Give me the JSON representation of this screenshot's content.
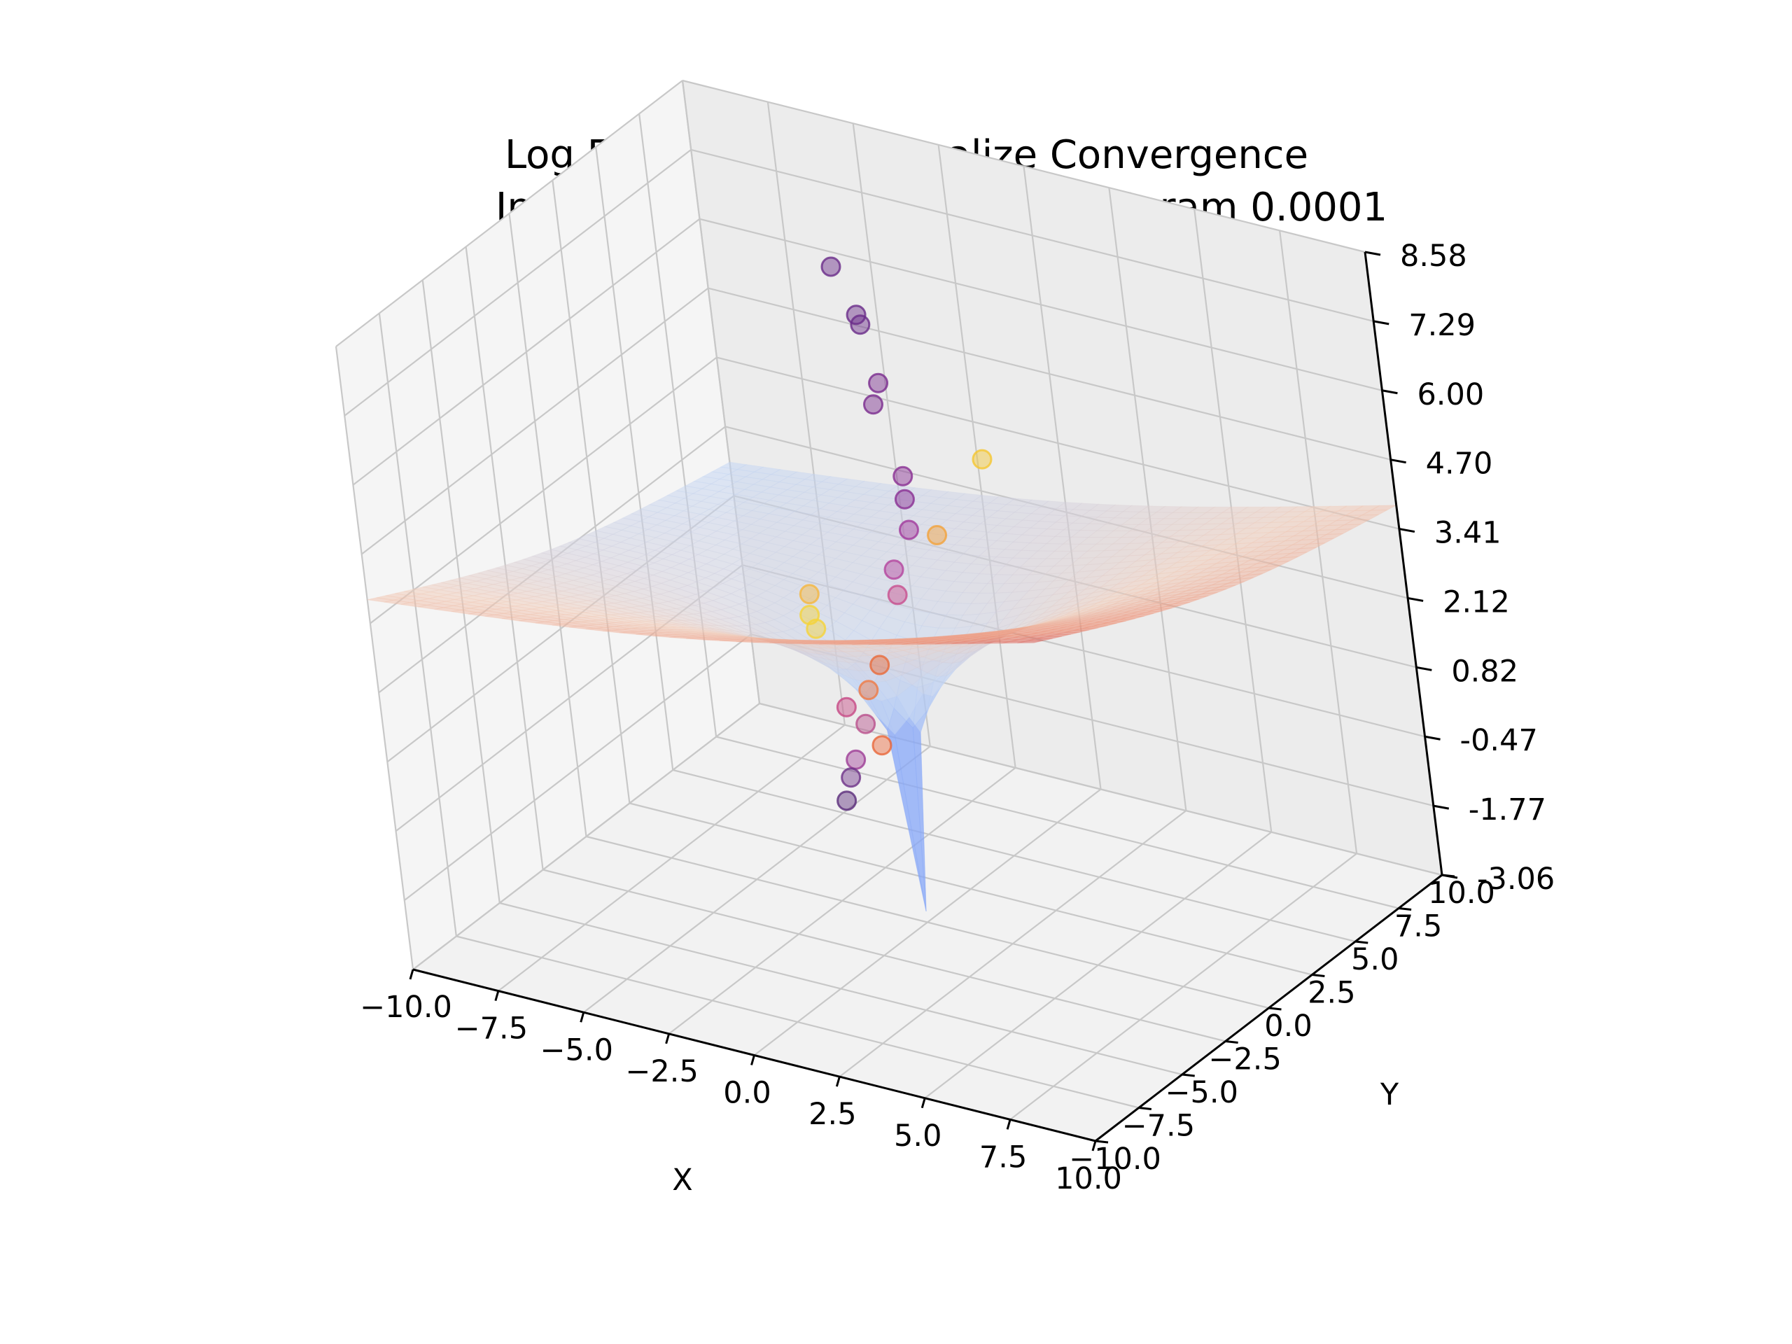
{
  "chart_data": {
    "type": "surface3d",
    "title": "Log Function Nonnormalize Convergence",
    "subtitle": "Inv Sq Root Optimal Step Sizes Param 0.0001",
    "xlabel": "X",
    "ylabel": "Y",
    "zlabel": "",
    "xlim": [
      -10,
      10
    ],
    "ylim": [
      -10,
      10
    ],
    "zlim": [
      -3.06,
      8.58
    ],
    "x_ticks": [
      "−10.0",
      "−7.5",
      "−5.0",
      "−2.5",
      "0.0",
      "2.5",
      "5.0",
      "7.5",
      "10.0"
    ],
    "y_ticks": [
      "−10.0",
      "−7.5",
      "−5.0",
      "−2.5",
      "0.0",
      "2.5",
      "5.0",
      "7.5",
      "10.0"
    ],
    "z_ticks": [
      "-3.06",
      "-1.77",
      "-0.47",
      "0.82",
      "2.12",
      "3.41",
      "4.70",
      "6.00",
      "7.29",
      "8.58"
    ],
    "grid": true,
    "surface_colormap": "coolwarm",
    "surface_alpha": 0.5,
    "trajectory_points": [
      {
        "x": -4.2,
        "y": 6.5,
        "z": 6.9,
        "color": "#6a2c8a"
      },
      {
        "x": -3.1,
        "y": 5.6,
        "z": 6.4,
        "color": "#6a2c8a"
      },
      {
        "x": -2.9,
        "y": 5.4,
        "z": 6.3,
        "color": "#6a2c8a"
      },
      {
        "x": -2.0,
        "y": 4.4,
        "z": 5.6,
        "color": "#7a2c8e"
      },
      {
        "x": -2.0,
        "y": 4.0,
        "z": 5.3,
        "color": "#7a2c8e"
      },
      {
        "x": -0.8,
        "y": 3.0,
        "z": 4.4,
        "color": "#8a2f94"
      },
      {
        "x": -0.6,
        "y": 2.6,
        "z": 4.1,
        "color": "#8a2f94"
      },
      {
        "x": -0.3,
        "y": 2.1,
        "z": 3.7,
        "color": "#a13a9c"
      },
      {
        "x": -0.5,
        "y": 1.4,
        "z": 3.1,
        "color": "#b4459e"
      },
      {
        "x": 0.3,
        "y": 2.5,
        "z": 3.6,
        "color": "#f2a23b"
      },
      {
        "x": 0.8,
        "y": 4.5,
        "z": 4.6,
        "color": "#f5c732"
      },
      {
        "x": -0.2,
        "y": 0.9,
        "z": 2.8,
        "color": "#c84f8f"
      },
      {
        "x": -2.0,
        "y": -0.6,
        "z": 2.9,
        "color": "#f5b740"
      },
      {
        "x": -1.9,
        "y": -0.9,
        "z": 2.6,
        "color": "#f5d33a"
      },
      {
        "x": -1.7,
        "y": -1.0,
        "z": 2.4,
        "color": "#f5d33a"
      },
      {
        "x": -0.6,
        "y": 0.2,
        "z": 1.6,
        "color": "#e86a3a"
      },
      {
        "x": -0.8,
        "y": -0.2,
        "z": 1.2,
        "color": "#ef7b45"
      },
      {
        "x": -1.3,
        "y": -0.6,
        "z": 0.9,
        "color": "#c74a86"
      },
      {
        "x": -0.9,
        "y": -0.4,
        "z": 0.6,
        "color": "#b9508c"
      },
      {
        "x": -0.6,
        "y": -0.2,
        "z": 0.2,
        "color": "#e8663a"
      },
      {
        "x": -1.1,
        "y": -0.8,
        "z": 0.0,
        "color": "#9d3d96"
      },
      {
        "x": -1.2,
        "y": -1.0,
        "z": -0.3,
        "color": "#6e3288"
      },
      {
        "x": -1.3,
        "y": -1.2,
        "z": -0.7,
        "color": "#5a2c7a"
      }
    ]
  }
}
